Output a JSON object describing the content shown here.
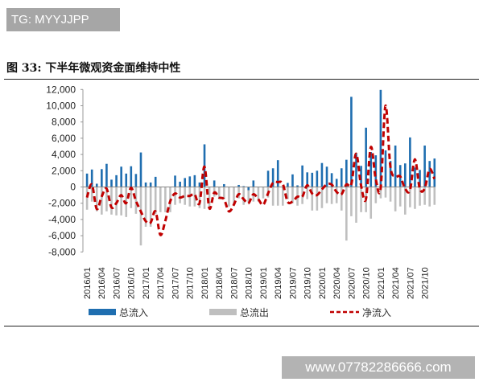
{
  "watermark_top": "TG: MYYJJPP",
  "watermark_bottom": "www.07782286666.com",
  "chart_data": {
    "type": "bar",
    "title": "图 33:  下半年微观资金面维持中性",
    "xlabel": "",
    "ylabel": "",
    "ylim": [
      -8000,
      12000
    ],
    "y_ticks": [
      "12,000",
      "10,000",
      "8,000",
      "6,000",
      "4,000",
      "2,000",
      "0",
      "-2,000",
      "-4,000",
      "-6,000",
      "-8,000"
    ],
    "y_tick_values": [
      12000,
      10000,
      8000,
      6000,
      4000,
      2000,
      0,
      -2000,
      -4000,
      -6000,
      -8000
    ],
    "grid": false,
    "legend_position": "bottom",
    "colors": {
      "inflow": "#1f6eb0",
      "outflow": "#bfbfbf",
      "net": "#c00000"
    },
    "categories": [
      "2016/01",
      "2016/02",
      "2016/03",
      "2016/04",
      "2016/05",
      "2016/06",
      "2016/07",
      "2016/08",
      "2016/09",
      "2016/10",
      "2016/11",
      "2016/12",
      "2017/01",
      "2017/02",
      "2017/03",
      "2017/04",
      "2017/05",
      "2017/06",
      "2017/07",
      "2017/08",
      "2017/09",
      "2017/10",
      "2017/11",
      "2017/12",
      "2018/01",
      "2018/02",
      "2018/03",
      "2018/04",
      "2018/05",
      "2018/06",
      "2018/07",
      "2018/08",
      "2018/09",
      "2018/10",
      "2018/11",
      "2018/12",
      "2019/01",
      "2019/02",
      "2019/03",
      "2019/04",
      "2019/05",
      "2019/06",
      "2019/07",
      "2019/08",
      "2019/09",
      "2019/10",
      "2019/11",
      "2019/12",
      "2020/01",
      "2020/02",
      "2020/03",
      "2020/04",
      "2020/05",
      "2020/06",
      "2020/07",
      "2020/08",
      "2020/09",
      "2020/10",
      "2020/11",
      "2020/12",
      "2021/01",
      "2021/02",
      "2021/03",
      "2021/04",
      "2021/05",
      "2021/06",
      "2021/07",
      "2021/08",
      "2021/09",
      "2021/10",
      "2021/11",
      "2021/12"
    ],
    "x_tick_labels": [
      "2016/01",
      "2016/04",
      "2016/07",
      "2016/10",
      "2017/01",
      "2017/04",
      "2017/07",
      "2017/10",
      "2018/01",
      "2018/04",
      "2018/07",
      "2018/10",
      "2019/01",
      "2019/04",
      "2019/07",
      "2019/10",
      "2020/01",
      "2020/04",
      "2020/07",
      "2020/10",
      "2021/01",
      "2021/04",
      "2021/07",
      "2021/10"
    ],
    "series": [
      {
        "name": "总流入",
        "type": "bar",
        "values": [
          1650,
          2150,
          400,
          2200,
          2850,
          900,
          1450,
          2500,
          1650,
          2550,
          1600,
          4250,
          550,
          550,
          1250,
          0,
          0,
          0,
          1400,
          650,
          1100,
          1300,
          1450,
          550,
          5250,
          0,
          800,
          0,
          350,
          0,
          0,
          250,
          100,
          -400,
          800,
          0,
          0,
          2000,
          2300,
          3300,
          0,
          500,
          1550,
          200,
          2650,
          1800,
          1750,
          2000,
          2950,
          2500,
          1700,
          1000,
          2300,
          3350,
          11100,
          4100,
          2600,
          7300,
          4300,
          3900,
          11950,
          4500,
          3200,
          5100,
          2700,
          2900,
          6100,
          2400,
          2100,
          5100,
          3200,
          3500
        ]
      },
      {
        "name": "总流出",
        "type": "bar",
        "values": [
          -2800,
          -1800,
          -3000,
          -3400,
          -3000,
          -3400,
          -3500,
          -3500,
          -3700,
          -2600,
          -3300,
          -7200,
          -4900,
          -4900,
          -3300,
          -3100,
          -3100,
          -3100,
          -2200,
          -2000,
          -2200,
          -2400,
          -2400,
          -2600,
          -2700,
          -2600,
          -1200,
          -1500,
          -1500,
          -2400,
          -2200,
          -1400,
          -2200,
          -2000,
          -1800,
          -1800,
          -1400,
          -1300,
          -2300,
          -2300,
          -2300,
          -1500,
          -2000,
          -2300,
          -2100,
          -1500,
          -2900,
          -2900,
          -2600,
          -2000,
          -2100,
          -2000,
          -2900,
          -6600,
          -3600,
          -4400,
          -3100,
          -3100,
          -3900,
          -2000,
          -1400,
          -1300,
          -1800,
          -3000,
          -2400,
          -3400,
          -2500,
          -2700,
          -2300,
          -2200,
          -2400,
          -2200
        ]
      },
      {
        "name": "净流入",
        "type": "line",
        "values": [
          -1300,
          300,
          -2700,
          -1200,
          -200,
          -2500,
          -2000,
          -1000,
          -2000,
          -100,
          -1700,
          -3000,
          -4200,
          -4400,
          -3000,
          -5900,
          -4200,
          -1800,
          -800,
          -1300,
          -1100,
          -1100,
          -900,
          -2000,
          2500,
          -2600,
          -700,
          -1300,
          -1500,
          -3000,
          -2200,
          -900,
          -1500,
          -2000,
          -900,
          -1500,
          -2200,
          -800,
          500,
          600,
          400,
          -1800,
          -1800,
          -1200,
          -1200,
          200,
          -800,
          -1000,
          -300,
          300,
          300,
          -600,
          -900,
          300,
          300,
          4100,
          200,
          -1500,
          4900,
          1000,
          -200,
          10000,
          2500,
          1300,
          1300,
          -200,
          -400,
          3400,
          -200,
          -200,
          2200,
          1000
        ]
      }
    ]
  }
}
